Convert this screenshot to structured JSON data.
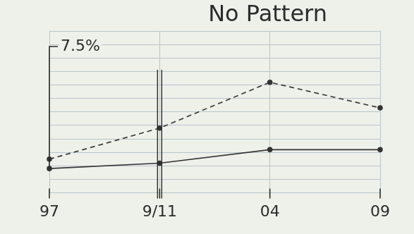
{
  "chart_data": {
    "type": "line",
    "title": "No Pattern",
    "categories": [
      "97",
      "9/11",
      "04",
      "09"
    ],
    "series": [
      {
        "color": "#333333",
        "line_style": "dashed",
        "marker": "circle",
        "values": [
          2.5,
          4.8,
          8.2,
          6.3
        ]
      },
      {
        "color": "#333333",
        "line_style": "solid",
        "marker": "circle",
        "values": [
          1.8,
          2.2,
          3.2,
          3.2
        ]
      }
    ],
    "annotations": [
      "7.5%"
    ],
    "ylim": [
      0,
      12
    ],
    "yticks": [
      0,
      1,
      2,
      3,
      4,
      5,
      6,
      7,
      8,
      9,
      10,
      11,
      12
    ],
    "grid": true,
    "tick_labels": "x"
  }
}
